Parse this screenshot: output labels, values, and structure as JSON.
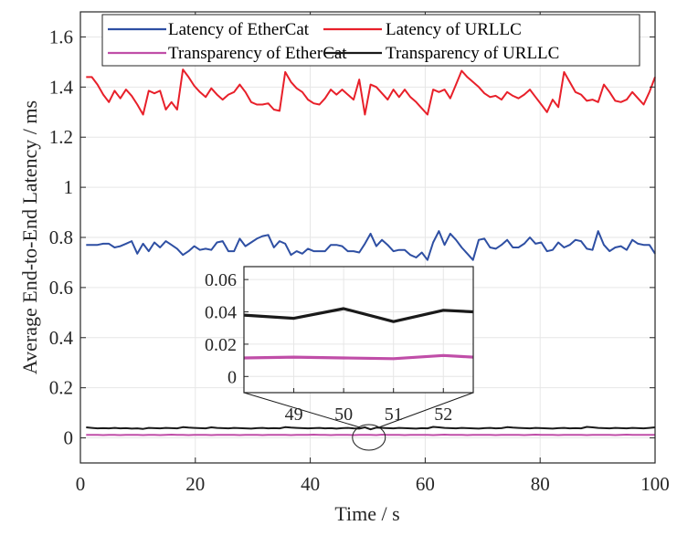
{
  "chart_data": {
    "type": "line",
    "title": "",
    "xlabel": "Time / s",
    "ylabel": "Average End-to-End Latency / ms",
    "xlim": [
      0,
      100
    ],
    "ylim": [
      -0.1,
      1.7
    ],
    "xticks": [
      0,
      20,
      40,
      60,
      80,
      100
    ],
    "xtick_labels": [
      "0",
      "20",
      "40",
      "60",
      "80",
      "100"
    ],
    "yticks": [
      0,
      0.2,
      0.4,
      0.6,
      0.8,
      1,
      1.2,
      1.4,
      1.6
    ],
    "ytick_labels": [
      "0",
      "0.2",
      "0.4",
      "0.6",
      "0.8",
      "1",
      "1.2",
      "1.4",
      "1.6"
    ],
    "grid": true,
    "legend_position": "top",
    "legend_columns": 2,
    "series": [
      {
        "name": "Latency of EtherCat",
        "color": "#2e4fa3",
        "values": [
          0.77,
          0.77,
          0.77,
          0.775,
          0.775,
          0.76,
          0.765,
          0.775,
          0.785,
          0.735,
          0.775,
          0.745,
          0.78,
          0.76,
          0.785,
          0.77,
          0.755,
          0.73,
          0.745,
          0.765,
          0.75,
          0.755,
          0.75,
          0.78,
          0.785,
          0.745,
          0.745,
          0.795,
          0.765,
          0.78,
          0.795,
          0.805,
          0.81,
          0.76,
          0.785,
          0.775,
          0.73,
          0.745,
          0.735,
          0.755,
          0.745,
          0.745,
          0.745,
          0.77,
          0.77,
          0.765,
          0.745,
          0.745,
          0.74,
          0.775,
          0.815,
          0.765,
          0.79,
          0.77,
          0.745,
          0.75,
          0.75,
          0.73,
          0.72,
          0.74,
          0.71,
          0.78,
          0.825,
          0.77,
          0.815,
          0.79,
          0.76,
          0.735,
          0.71,
          0.79,
          0.795,
          0.76,
          0.755,
          0.77,
          0.79,
          0.76,
          0.76,
          0.775,
          0.8,
          0.775,
          0.78,
          0.745,
          0.75,
          0.78,
          0.76,
          0.77,
          0.79,
          0.785,
          0.755,
          0.75,
          0.825,
          0.77,
          0.745,
          0.76,
          0.765,
          0.75,
          0.79,
          0.775,
          0.77,
          0.77,
          0.735
        ]
      },
      {
        "name": "Latency of URLLC",
        "color": "#e8202a",
        "values": [
          1.44,
          1.44,
          1.41,
          1.37,
          1.34,
          1.385,
          1.355,
          1.39,
          1.365,
          1.33,
          1.29,
          1.385,
          1.375,
          1.385,
          1.31,
          1.34,
          1.31,
          1.47,
          1.44,
          1.405,
          1.38,
          1.36,
          1.395,
          1.37,
          1.35,
          1.37,
          1.38,
          1.41,
          1.38,
          1.34,
          1.33,
          1.33,
          1.335,
          1.31,
          1.305,
          1.46,
          1.42,
          1.395,
          1.38,
          1.35,
          1.335,
          1.33,
          1.355,
          1.39,
          1.37,
          1.39,
          1.37,
          1.35,
          1.43,
          1.29,
          1.41,
          1.4,
          1.375,
          1.35,
          1.39,
          1.36,
          1.39,
          1.36,
          1.34,
          1.315,
          1.29,
          1.39,
          1.38,
          1.39,
          1.355,
          1.41,
          1.465,
          1.44,
          1.42,
          1.4,
          1.375,
          1.36,
          1.365,
          1.35,
          1.38,
          1.365,
          1.355,
          1.37,
          1.39,
          1.36,
          1.33,
          1.3,
          1.35,
          1.32,
          1.46,
          1.42,
          1.38,
          1.37,
          1.345,
          1.35,
          1.34,
          1.41,
          1.38,
          1.345,
          1.34,
          1.35,
          1.38,
          1.355,
          1.33,
          1.38,
          1.44
        ]
      },
      {
        "name": "Transparency of EtherCat",
        "color": "#c04ea8",
        "values": [
          0.012,
          0.012,
          0.012,
          0.011,
          0.012,
          0.012,
          0.011,
          0.012,
          0.012,
          0.012,
          0.011,
          0.012,
          0.012,
          0.011,
          0.012,
          0.013,
          0.012,
          0.012,
          0.011,
          0.012,
          0.012,
          0.012,
          0.011,
          0.012,
          0.012,
          0.012,
          0.012,
          0.011,
          0.012,
          0.012,
          0.012,
          0.011,
          0.012,
          0.012,
          0.012,
          0.012,
          0.011,
          0.012,
          0.012,
          0.012,
          0.013,
          0.012,
          0.012,
          0.011,
          0.012,
          0.012,
          0.012,
          0.011,
          0.012,
          0.012,
          0.012,
          0.011,
          0.013,
          0.012,
          0.012,
          0.012,
          0.011,
          0.012,
          0.012,
          0.012,
          0.012,
          0.011,
          0.012,
          0.013,
          0.012,
          0.012,
          0.012,
          0.011,
          0.012,
          0.012,
          0.012,
          0.012,
          0.011,
          0.012,
          0.012,
          0.012,
          0.012,
          0.011,
          0.012,
          0.013,
          0.012,
          0.012,
          0.012,
          0.011,
          0.012,
          0.012,
          0.012,
          0.012,
          0.011,
          0.012,
          0.012,
          0.012,
          0.012,
          0.011,
          0.012,
          0.013,
          0.012,
          0.012,
          0.012,
          0.012,
          0.012
        ]
      },
      {
        "name": "Transparency of URLLC",
        "color": "#1a1a1a",
        "values": [
          0.042,
          0.04,
          0.038,
          0.039,
          0.038,
          0.04,
          0.038,
          0.039,
          0.037,
          0.038,
          0.036,
          0.04,
          0.039,
          0.038,
          0.04,
          0.039,
          0.038,
          0.043,
          0.041,
          0.04,
          0.039,
          0.038,
          0.042,
          0.04,
          0.039,
          0.038,
          0.04,
          0.039,
          0.038,
          0.037,
          0.039,
          0.04,
          0.038,
          0.039,
          0.038,
          0.043,
          0.041,
          0.04,
          0.039,
          0.038,
          0.039,
          0.04,
          0.038,
          0.039,
          0.037,
          0.039,
          0.04,
          0.038,
          0.037,
          0.042,
          0.034,
          0.041,
          0.04,
          0.039,
          0.038,
          0.04,
          0.039,
          0.038,
          0.037,
          0.039,
          0.038,
          0.044,
          0.042,
          0.04,
          0.039,
          0.038,
          0.04,
          0.039,
          0.038,
          0.037,
          0.039,
          0.04,
          0.038,
          0.039,
          0.043,
          0.041,
          0.04,
          0.039,
          0.038,
          0.04,
          0.039,
          0.038,
          0.037,
          0.039,
          0.04,
          0.038,
          0.039,
          0.038,
          0.044,
          0.042,
          0.04,
          0.039,
          0.038,
          0.04,
          0.039,
          0.038,
          0.04,
          0.039,
          0.038,
          0.04,
          0.042
        ]
      }
    ],
    "inset": {
      "xlim": [
        48,
        52.6
      ],
      "ylim": [
        -0.01,
        0.068
      ],
      "xticks": [
        49,
        50,
        51,
        52
      ],
      "xtick_labels": [
        "49",
        "50",
        "51",
        "52"
      ],
      "yticks": [
        0,
        0.02,
        0.04,
        0.06
      ],
      "ytick_labels": [
        "0",
        "0.02",
        "0.04",
        "0.06"
      ],
      "grid": true,
      "zoom_region": {
        "x": [
          48,
          52.6
        ],
        "y_center": 0.02
      },
      "series": [
        {
          "name": "Transparency of EtherCat",
          "x": [
            48,
            49,
            50,
            51,
            52,
            52.6
          ],
          "values": [
            0.0115,
            0.012,
            0.0115,
            0.011,
            0.013,
            0.012
          ]
        },
        {
          "name": "Transparency of URLLC",
          "x": [
            48,
            49,
            50,
            51,
            52,
            52.6
          ],
          "values": [
            0.038,
            0.036,
            0.042,
            0.034,
            0.041,
            0.04
          ]
        }
      ]
    }
  }
}
